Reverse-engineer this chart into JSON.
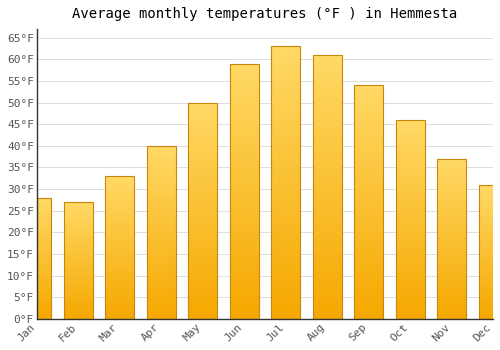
{
  "title": "Average monthly temperatures (°F ) in Hemmesta",
  "months": [
    "Jan",
    "Feb",
    "Mar",
    "Apr",
    "May",
    "Jun",
    "Jul",
    "Aug",
    "Sep",
    "Oct",
    "Nov",
    "Dec"
  ],
  "values": [
    28,
    27,
    33,
    40,
    50,
    59,
    63,
    61,
    54,
    46,
    37,
    31
  ],
  "bar_color_top": "#FFD966",
  "bar_color_bottom": "#F5A800",
  "bar_edge_color": "#C8870A",
  "background_color": "#FFFFFF",
  "grid_color": "#DDDDDD",
  "ylim": [
    0,
    67
  ],
  "yticks": [
    0,
    5,
    10,
    15,
    20,
    25,
    30,
    35,
    40,
    45,
    50,
    55,
    60,
    65
  ],
  "title_fontsize": 10,
  "tick_fontsize": 8,
  "font_family": "monospace",
  "figsize": [
    5.0,
    3.5
  ],
  "dpi": 100
}
